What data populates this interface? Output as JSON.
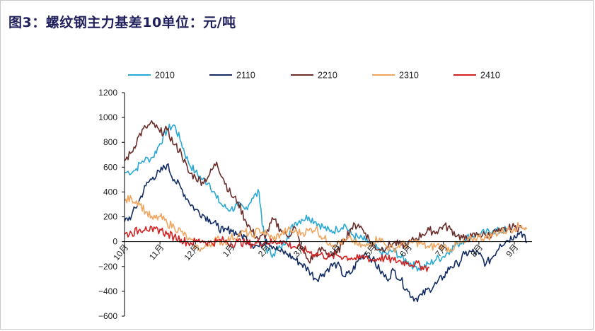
{
  "title": "图3：螺纹钢主力基差10单位：元/吨",
  "chart_data": {
    "type": "line",
    "title": "图3：螺纹钢主力基差10单位：元/吨",
    "ylim": [
      -600,
      1200
    ],
    "yticks": [
      -600,
      -400,
      -200,
      0,
      200,
      400,
      600,
      800,
      1000,
      1200
    ],
    "ytick_labels": [
      "−600",
      "−400",
      "−200",
      "0",
      "200",
      "400",
      "600",
      "800",
      "1000",
      "1200"
    ],
    "x_tick_labels": [
      "10月",
      "11月",
      "12月",
      "1月",
      "2月",
      "3月",
      "4月",
      "5月",
      "6月",
      "7月",
      "8月",
      "9月"
    ],
    "x_tick_positions": [
      0,
      1,
      2,
      3,
      4,
      5,
      6,
      7,
      8,
      9,
      10,
      11
    ],
    "xlim": [
      0,
      11.5
    ],
    "legend_position": "top",
    "grid": false,
    "series": [
      {
        "name": "2010",
        "color": "#29a9d4",
        "points": [
          [
            0,
            555
          ],
          [
            0.3,
            575
          ],
          [
            0.5,
            650
          ],
          [
            0.8,
            680
          ],
          [
            1.0,
            790
          ],
          [
            1.2,
            900
          ],
          [
            1.4,
            940
          ],
          [
            1.6,
            800
          ],
          [
            1.8,
            640
          ],
          [
            2.0,
            560
          ],
          [
            2.2,
            500
          ],
          [
            2.4,
            470
          ],
          [
            2.6,
            350
          ],
          [
            2.8,
            280
          ],
          [
            3.0,
            260
          ],
          [
            3.2,
            290
          ],
          [
            3.4,
            260
          ],
          [
            3.6,
            350
          ],
          [
            3.8,
            395
          ],
          [
            3.9,
            120
          ],
          [
            4.0,
            -60
          ],
          [
            4.2,
            -100
          ],
          [
            4.4,
            -50
          ],
          [
            4.6,
            40
          ],
          [
            4.8,
            150
          ],
          [
            5.0,
            180
          ],
          [
            5.2,
            200
          ],
          [
            5.4,
            160
          ],
          [
            5.6,
            120
          ],
          [
            5.8,
            80
          ],
          [
            6.0,
            100
          ],
          [
            6.2,
            140
          ],
          [
            6.4,
            60
          ],
          [
            6.6,
            30
          ],
          [
            6.8,
            10
          ],
          [
            7.0,
            -30
          ],
          [
            7.2,
            -80
          ],
          [
            7.4,
            -100
          ],
          [
            7.6,
            -70
          ],
          [
            7.8,
            -130
          ],
          [
            8.0,
            -160
          ],
          [
            8.2,
            -200
          ],
          [
            8.4,
            -210
          ],
          [
            8.6,
            -180
          ],
          [
            8.8,
            -140
          ],
          [
            9.0,
            -120
          ],
          [
            9.2,
            -60
          ],
          [
            9.4,
            -20
          ],
          [
            9.6,
            20
          ],
          [
            9.8,
            50
          ],
          [
            10.0,
            60
          ],
          [
            10.2,
            70
          ],
          [
            10.4,
            90
          ],
          [
            10.6,
            80
          ],
          [
            10.8,
            100
          ]
        ]
      },
      {
        "name": "2110",
        "color": "#132d64",
        "points": [
          [
            0,
            160
          ],
          [
            0.2,
            210
          ],
          [
            0.4,
            320
          ],
          [
            0.6,
            450
          ],
          [
            0.8,
            520
          ],
          [
            1.0,
            560
          ],
          [
            1.2,
            620
          ],
          [
            1.4,
            500
          ],
          [
            1.6,
            430
          ],
          [
            1.8,
            330
          ],
          [
            2.0,
            260
          ],
          [
            2.2,
            220
          ],
          [
            2.4,
            180
          ],
          [
            2.6,
            130
          ],
          [
            2.8,
            80
          ],
          [
            3.0,
            100
          ],
          [
            3.2,
            60
          ],
          [
            3.4,
            40
          ],
          [
            3.6,
            -20
          ],
          [
            3.8,
            -40
          ],
          [
            4.0,
            20
          ],
          [
            4.2,
            -40
          ],
          [
            4.4,
            -80
          ],
          [
            4.6,
            -100
          ],
          [
            4.8,
            -140
          ],
          [
            5.0,
            -180
          ],
          [
            5.2,
            -230
          ],
          [
            5.4,
            -300
          ],
          [
            5.6,
            -260
          ],
          [
            5.8,
            -200
          ],
          [
            6.0,
            -180
          ],
          [
            6.2,
            -280
          ],
          [
            6.4,
            -250
          ],
          [
            6.6,
            -150
          ],
          [
            6.8,
            -90
          ],
          [
            7.0,
            -140
          ],
          [
            7.2,
            -230
          ],
          [
            7.4,
            -300
          ],
          [
            7.6,
            -230
          ],
          [
            7.8,
            -310
          ],
          [
            8.0,
            -400
          ],
          [
            8.2,
            -460
          ],
          [
            8.4,
            -430
          ],
          [
            8.6,
            -380
          ],
          [
            8.8,
            -340
          ],
          [
            9.0,
            -280
          ],
          [
            9.2,
            -200
          ],
          [
            9.4,
            -180
          ],
          [
            9.6,
            -100
          ],
          [
            9.8,
            -80
          ],
          [
            10.0,
            -100
          ],
          [
            10.2,
            -180
          ],
          [
            10.4,
            -120
          ],
          [
            10.6,
            -20
          ],
          [
            10.8,
            10
          ],
          [
            11.0,
            50
          ],
          [
            11.2,
            80
          ],
          [
            11.35,
            -10
          ]
        ]
      },
      {
        "name": "2210",
        "color": "#6b2d2a",
        "points": [
          [
            0,
            650
          ],
          [
            0.2,
            720
          ],
          [
            0.4,
            850
          ],
          [
            0.6,
            920
          ],
          [
            0.8,
            950
          ],
          [
            1.0,
            880
          ],
          [
            1.2,
            900
          ],
          [
            1.4,
            780
          ],
          [
            1.6,
            720
          ],
          [
            1.8,
            560
          ],
          [
            2.0,
            520
          ],
          [
            2.2,
            480
          ],
          [
            2.4,
            540
          ],
          [
            2.6,
            640
          ],
          [
            2.8,
            500
          ],
          [
            3.0,
            380
          ],
          [
            3.2,
            320
          ],
          [
            3.4,
            180
          ],
          [
            3.6,
            80
          ],
          [
            3.8,
            20
          ],
          [
            4.0,
            60
          ],
          [
            4.2,
            180
          ],
          [
            4.4,
            100
          ],
          [
            4.6,
            40
          ],
          [
            4.8,
            120
          ],
          [
            5.0,
            -60
          ],
          [
            5.2,
            -160
          ],
          [
            5.4,
            -100
          ],
          [
            5.6,
            -60
          ],
          [
            5.8,
            -110
          ],
          [
            6.0,
            -90
          ],
          [
            6.2,
            20
          ],
          [
            6.4,
            110
          ],
          [
            6.6,
            140
          ],
          [
            6.8,
            70
          ],
          [
            7.0,
            -30
          ],
          [
            7.2,
            -60
          ],
          [
            7.4,
            -40
          ],
          [
            7.6,
            -10
          ],
          [
            7.8,
            -30
          ],
          [
            8.0,
            -20
          ],
          [
            8.2,
            20
          ],
          [
            8.4,
            60
          ],
          [
            8.6,
            90
          ],
          [
            8.8,
            80
          ],
          [
            9.0,
            130
          ],
          [
            9.2,
            100
          ],
          [
            9.4,
            50
          ],
          [
            9.6,
            20
          ],
          [
            9.8,
            40
          ],
          [
            10.0,
            60
          ],
          [
            10.2,
            50
          ],
          [
            10.4,
            70
          ],
          [
            10.6,
            80
          ],
          [
            10.8,
            100
          ],
          [
            11.0,
            120
          ],
          [
            11.2,
            110
          ]
        ]
      },
      {
        "name": "2310",
        "color": "#f0a560",
        "points": [
          [
            0,
            330
          ],
          [
            0.2,
            345
          ],
          [
            0.4,
            320
          ],
          [
            0.6,
            240
          ],
          [
            0.8,
            180
          ],
          [
            1.0,
            200
          ],
          [
            1.2,
            150
          ],
          [
            1.4,
            120
          ],
          [
            1.6,
            80
          ],
          [
            1.8,
            20
          ],
          [
            2.0,
            -40
          ],
          [
            2.2,
            -60
          ],
          [
            2.4,
            -20
          ],
          [
            2.6,
            20
          ],
          [
            2.8,
            -10
          ],
          [
            3.0,
            30
          ],
          [
            3.2,
            50
          ],
          [
            3.4,
            80
          ],
          [
            3.6,
            40
          ],
          [
            3.8,
            100
          ],
          [
            4.0,
            60
          ],
          [
            4.2,
            20
          ],
          [
            4.4,
            60
          ],
          [
            4.6,
            90
          ],
          [
            4.8,
            80
          ],
          [
            5.0,
            70
          ],
          [
            5.2,
            90
          ],
          [
            5.4,
            110
          ],
          [
            5.6,
            30
          ],
          [
            5.8,
            -10
          ],
          [
            6.0,
            -20
          ],
          [
            6.2,
            0
          ],
          [
            6.4,
            20
          ],
          [
            6.6,
            -30
          ],
          [
            6.8,
            -40
          ],
          [
            7.0,
            0
          ],
          [
            7.2,
            30
          ],
          [
            7.4,
            -40
          ],
          [
            7.6,
            -60
          ],
          [
            7.8,
            -20
          ],
          [
            8.0,
            -30
          ],
          [
            8.2,
            0
          ],
          [
            8.4,
            -20
          ],
          [
            8.6,
            -50
          ],
          [
            8.8,
            -30
          ],
          [
            9.0,
            -40
          ],
          [
            9.2,
            -60
          ],
          [
            9.4,
            -20
          ],
          [
            9.6,
            -10
          ],
          [
            9.8,
            20
          ],
          [
            10.0,
            40
          ],
          [
            10.2,
            30
          ],
          [
            10.4,
            60
          ],
          [
            10.6,
            80
          ],
          [
            10.8,
            90
          ],
          [
            11.0,
            110
          ],
          [
            11.2,
            130
          ],
          [
            11.35,
            100
          ]
        ]
      },
      {
        "name": "2410",
        "color": "#d32020",
        "points": [
          [
            0,
            60
          ],
          [
            0.2,
            70
          ],
          [
            0.4,
            90
          ],
          [
            0.6,
            120
          ],
          [
            0.8,
            80
          ],
          [
            1.0,
            100
          ],
          [
            1.2,
            60
          ],
          [
            1.4,
            40
          ],
          [
            1.6,
            20
          ],
          [
            1.8,
            -10
          ],
          [
            2.0,
            0
          ],
          [
            2.2,
            10
          ],
          [
            2.4,
            -10
          ],
          [
            2.6,
            0
          ],
          [
            2.8,
            10
          ],
          [
            3.0,
            -20
          ],
          [
            3.2,
            0
          ],
          [
            3.4,
            -10
          ],
          [
            3.6,
            -20
          ],
          [
            3.8,
            -10
          ],
          [
            4.0,
            0
          ],
          [
            4.2,
            -10
          ],
          [
            4.4,
            10
          ],
          [
            4.6,
            -20
          ],
          [
            4.8,
            -40
          ],
          [
            5.0,
            -60
          ],
          [
            5.2,
            -80
          ],
          [
            5.4,
            -100
          ],
          [
            5.6,
            -110
          ],
          [
            5.8,
            -120
          ],
          [
            6.0,
            -110
          ],
          [
            6.2,
            -120
          ],
          [
            6.4,
            -130
          ],
          [
            6.6,
            -140
          ],
          [
            6.8,
            -120
          ],
          [
            7.0,
            -150
          ],
          [
            7.2,
            -130
          ],
          [
            7.4,
            -140
          ],
          [
            7.6,
            -150
          ],
          [
            7.8,
            -160
          ],
          [
            8.0,
            -170
          ],
          [
            8.2,
            -180
          ],
          [
            8.4,
            -200
          ],
          [
            8.6,
            -210
          ]
        ]
      }
    ]
  }
}
